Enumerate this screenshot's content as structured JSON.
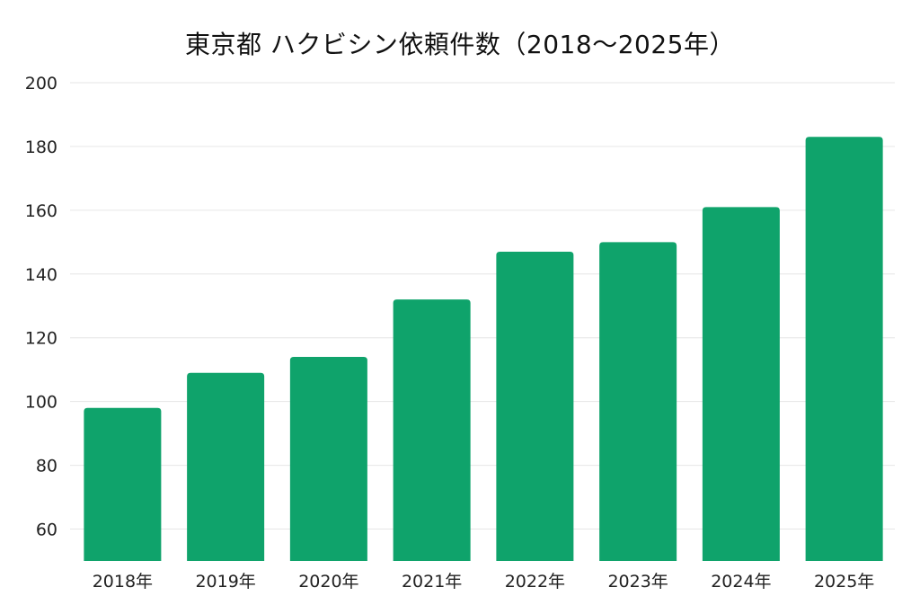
{
  "chart_data": {
    "type": "bar",
    "title": "東京都 ハクビシン依頼件数（2018〜2025年）",
    "categories": [
      "2018年",
      "2019年",
      "2020年",
      "2021年",
      "2022年",
      "2023年",
      "2024年",
      "2025年"
    ],
    "values": [
      98,
      109,
      114,
      132,
      147,
      150,
      161,
      183
    ],
    "ylim": [
      50,
      200
    ],
    "yticks": [
      60,
      80,
      100,
      120,
      140,
      160,
      180,
      200
    ],
    "xlabel": "",
    "ylabel": "",
    "grid": true,
    "legend": "none",
    "bar_color": "#0fa36b"
  }
}
